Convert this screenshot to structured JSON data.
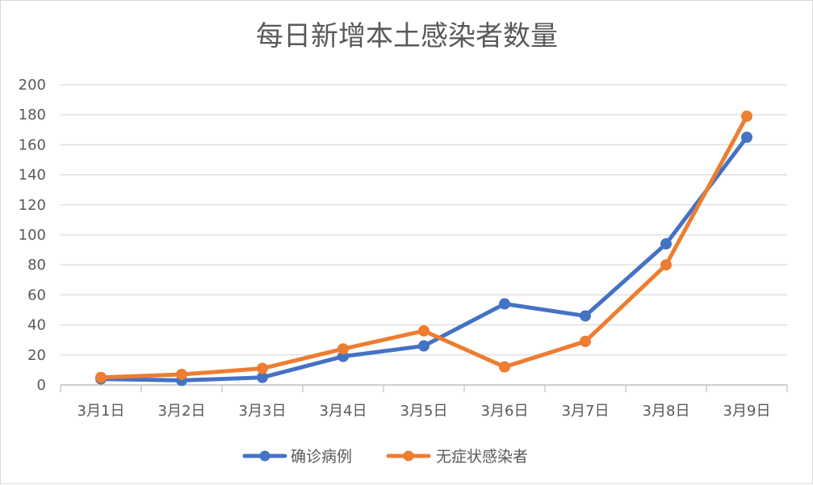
{
  "chart_data": {
    "type": "line",
    "title": "每日新增本土感染者数量",
    "categories": [
      "3月1日",
      "3月2日",
      "3月3日",
      "3月4日",
      "3月5日",
      "3月6日",
      "3月7日",
      "3月8日",
      "3月9日"
    ],
    "ylim": [
      0,
      200
    ],
    "yticks": [
      "0",
      "20",
      "40",
      "60",
      "80",
      "100",
      "120",
      "140",
      "160",
      "180",
      "200"
    ],
    "grid": true,
    "legend_position": "bottom",
    "series": [
      {
        "name": "确诊病例",
        "color": "#4472C4",
        "values": [
          4,
          3,
          5,
          19,
          26,
          54,
          46,
          94,
          165
        ]
      },
      {
        "name": "无症状感染者",
        "color": "#ED7D31",
        "values": [
          5,
          7,
          11,
          24,
          36,
          12,
          29,
          80,
          179
        ]
      }
    ]
  }
}
